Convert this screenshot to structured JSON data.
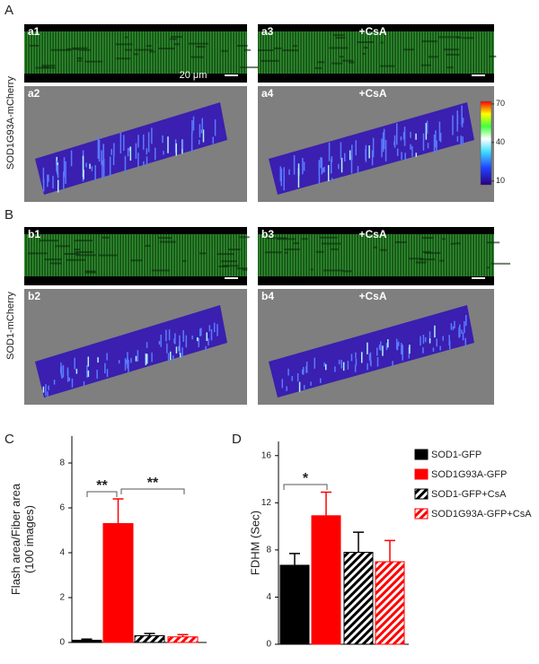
{
  "figure": {
    "A": {
      "label": "A",
      "ylabel": "SOD1G93A-mCherry",
      "panels": [
        {
          "label": "a1"
        },
        {
          "label": "a2"
        },
        {
          "label": "a3",
          "note": "+CsA"
        },
        {
          "label": "a4",
          "note": "+CsA"
        }
      ],
      "scalebar": "20 μm",
      "colorbar_lim": [
        7,
        72
      ],
      "colorbar_ticks": [
        70,
        40,
        10
      ]
    },
    "B": {
      "label": "B",
      "ylabel": "SOD1-mCherry",
      "panels": [
        {
          "label": "b1"
        },
        {
          "label": "b2"
        },
        {
          "label": "b3",
          "note": "+CsA"
        },
        {
          "label": "b4",
          "note": "+CsA"
        }
      ]
    }
  },
  "chart_data": [
    {
      "type": "bar",
      "panel": "C",
      "ylabel": [
        "Flash area/Fiber area",
        "(100 images)"
      ],
      "categories": [
        "SOD1-GFP",
        "SOD1G93A-GFP",
        "SOD1-GFP+CsA",
        "SOD1G93A-GFP+CsA"
      ],
      "values": [
        0.1,
        5.3,
        0.3,
        0.25
      ],
      "errors": [
        0.05,
        1.1,
        0.1,
        0.1
      ],
      "colors": [
        "#000000",
        "#ff0000",
        "#000000",
        "#ff0000"
      ],
      "hatch": [
        false,
        false,
        true,
        true
      ],
      "ylim": [
        0,
        9.2
      ],
      "yticks": [
        0,
        2,
        4,
        6,
        8
      ],
      "annotations": [
        {
          "text": "**"
        },
        {
          "text": "**"
        }
      ],
      "legend": false
    },
    {
      "type": "bar",
      "panel": "D",
      "ylabel": [
        "FDHM (Sec)"
      ],
      "categories": [
        "SOD1-GFP",
        "SOD1G93A-GFP",
        "SOD1-GFP+CsA",
        "SOD1G93A-GFP+CsA"
      ],
      "values": [
        6.7,
        10.9,
        7.8,
        7.0
      ],
      "errors": [
        1.0,
        2.0,
        1.7,
        1.8
      ],
      "colors": [
        "#000000",
        "#ff0000",
        "#000000",
        "#ff0000"
      ],
      "hatch": [
        false,
        false,
        true,
        true
      ],
      "ylim": [
        0,
        17.2
      ],
      "yticks": [
        0,
        4,
        8,
        12,
        16
      ],
      "annotations": [
        {
          "text": "*"
        }
      ],
      "legend": true
    }
  ]
}
